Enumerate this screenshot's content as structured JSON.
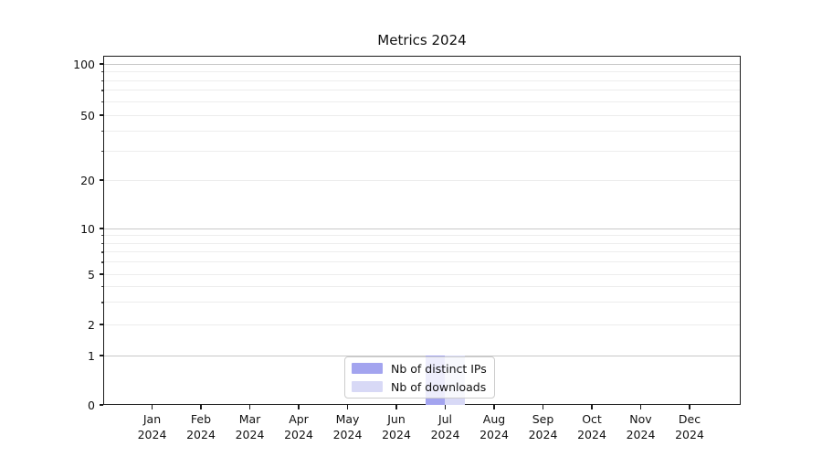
{
  "chart_data": {
    "type": "bar",
    "title": "Metrics 2024",
    "x": [
      "Jan 2024",
      "Feb 2024",
      "Mar 2024",
      "Apr 2024",
      "May 2024",
      "Jun 2024",
      "Jul 2024",
      "Aug 2024",
      "Sep 2024",
      "Oct 2024",
      "Nov 2024",
      "Dec 2024"
    ],
    "series": [
      {
        "name": "Nb of distinct IPs",
        "color": "#a3a4ef",
        "values": [
          0,
          0,
          0,
          0,
          0,
          0,
          1,
          0,
          0,
          0,
          0,
          0
        ]
      },
      {
        "name": "Nb of downloads",
        "color": "#d8d9f6",
        "values": [
          0,
          0,
          0,
          0,
          0,
          0,
          1,
          0,
          0,
          0,
          0,
          0
        ]
      }
    ],
    "y_axis": {
      "scale": "symlog",
      "tick_values": [
        0,
        1,
        2,
        5,
        10,
        20,
        50,
        100
      ],
      "major_grid_values": [
        1,
        10,
        100
      ],
      "minor_grid_values": [
        2,
        3,
        4,
        5,
        6,
        7,
        8,
        9,
        20,
        30,
        40,
        50,
        60,
        70,
        80,
        90
      ],
      "ylim": [
        0,
        106
      ]
    },
    "xlabel": "",
    "ylabel": "",
    "grid": "horizontal",
    "legend_position": "lower center"
  },
  "colors": {
    "axis": "#1a1a1a",
    "grid_major": "#c8c8c8",
    "grid_minor": "#ededed",
    "text": "#111111",
    "legend_border": "#cccccc",
    "background": "#ffffff"
  }
}
